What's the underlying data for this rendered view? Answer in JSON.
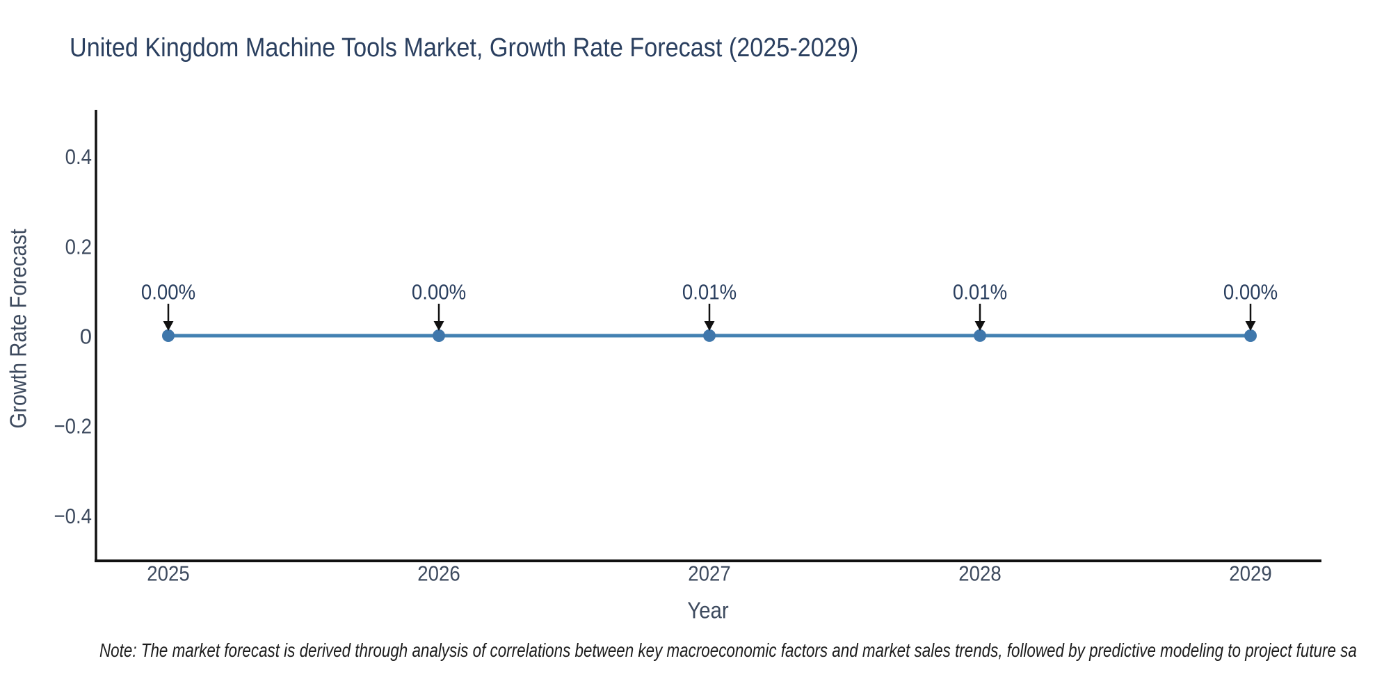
{
  "figure": {
    "title": "United Kingdom Machine Tools Market, Growth Rate Forecast (2025-2029)",
    "note": "Note: The market forecast is derived through analysis of correlations between key macroeconomic factors and market sales trends, followed by predictive modeling to project future sa"
  },
  "colors": {
    "background": "#ffffff",
    "title_text": "#2a3f5f",
    "tick_text": "#3d4a5e",
    "axis_title_text": "#3d4a5e",
    "annotation_text": "#2a3f5f",
    "note_text": "#1c1c1c",
    "axis_line": "#111111",
    "series_line": "#4381b2",
    "marker_fill": "#3f77ab",
    "arrow": "#111111"
  },
  "chart_data": {
    "type": "line",
    "title": "United Kingdom Machine Tools Market, Growth Rate Forecast (2025-2029)",
    "xlabel": "Year",
    "ylabel": "Growth Rate Forecast",
    "categories": [
      "2025",
      "2026",
      "2027",
      "2028",
      "2029"
    ],
    "series": [
      {
        "name": "Growth Rate Forecast",
        "values_percent": [
          0.0,
          0.0,
          0.01,
          0.01,
          0.0
        ]
      }
    ],
    "point_labels": [
      "0.00%",
      "0.00%",
      "0.01%",
      "0.01%",
      "0.00%"
    ],
    "ylim": [
      -0.5,
      0.5
    ],
    "yticks": [
      {
        "value": 0.4,
        "label": "0.4"
      },
      {
        "value": 0.2,
        "label": "0.2"
      },
      {
        "value": 0,
        "label": "0"
      },
      {
        "value": -0.2,
        "label": "−0.2"
      },
      {
        "value": -0.4,
        "label": "−0.4"
      }
    ],
    "grid": false,
    "legend": "none",
    "marker": "circle",
    "annotation_arrows": true
  }
}
